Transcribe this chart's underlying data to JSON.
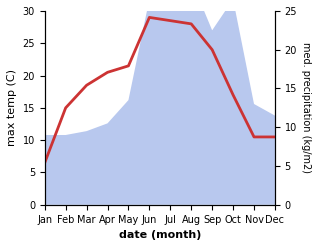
{
  "months": [
    "Jan",
    "Feb",
    "Mar",
    "Apr",
    "May",
    "Jun",
    "Jul",
    "Aug",
    "Sep",
    "Oct",
    "Nov",
    "Dec"
  ],
  "temp": [
    6.5,
    15.0,
    18.5,
    20.5,
    21.5,
    29.0,
    28.5,
    28.0,
    24.0,
    17.0,
    10.5,
    10.5
  ],
  "precip": [
    9.0,
    9.0,
    9.5,
    10.5,
    13.5,
    26.5,
    32.5,
    29.0,
    22.5,
    26.5,
    13.0,
    11.5
  ],
  "temp_color": "#cc3333",
  "precip_color": "#b8c8ee",
  "background_color": "#ffffff",
  "ylabel_left": "max temp (C)",
  "ylabel_right": "med. precipitation (kg/m2)",
  "xlabel": "date (month)",
  "ylim_left": [
    0,
    30
  ],
  "ylim_right": [
    0,
    25
  ],
  "precip_scale_factor": 1.2,
  "temp_linewidth": 2.0,
  "label_fontsize": 8,
  "tick_fontsize": 7
}
